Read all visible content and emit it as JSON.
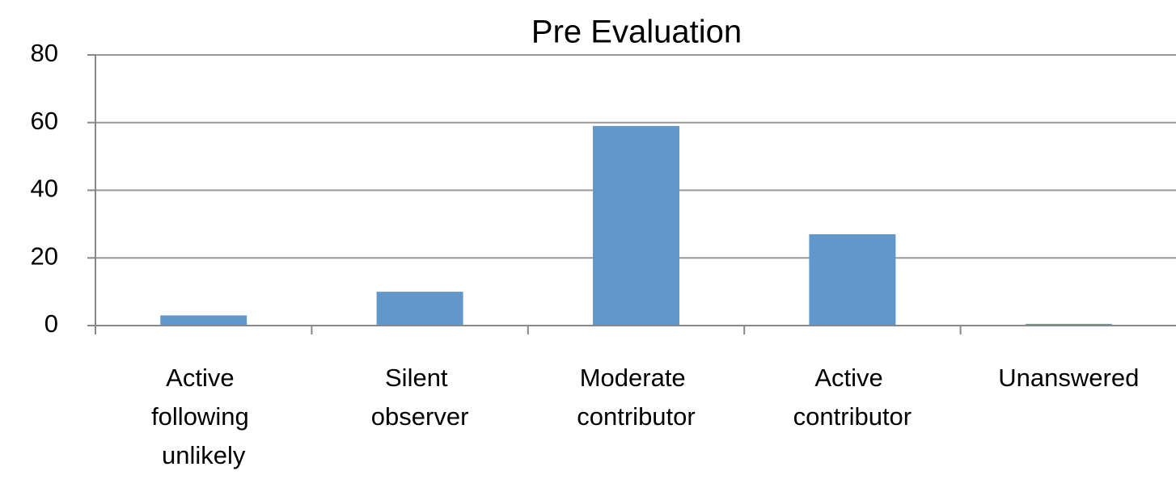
{
  "chart_data": {
    "type": "bar",
    "title": "Pre Evaluation",
    "categories": [
      "Active following unlikely",
      "Silent observer",
      "Moderate contributor",
      "Active contributor",
      "Unanswered"
    ],
    "values": [
      3,
      10,
      59,
      27,
      0.5
    ],
    "color": "#6197cb",
    "ylim": [
      0,
      80
    ],
    "yticks": [
      0,
      20,
      40,
      60,
      80
    ],
    "grid": true
  }
}
